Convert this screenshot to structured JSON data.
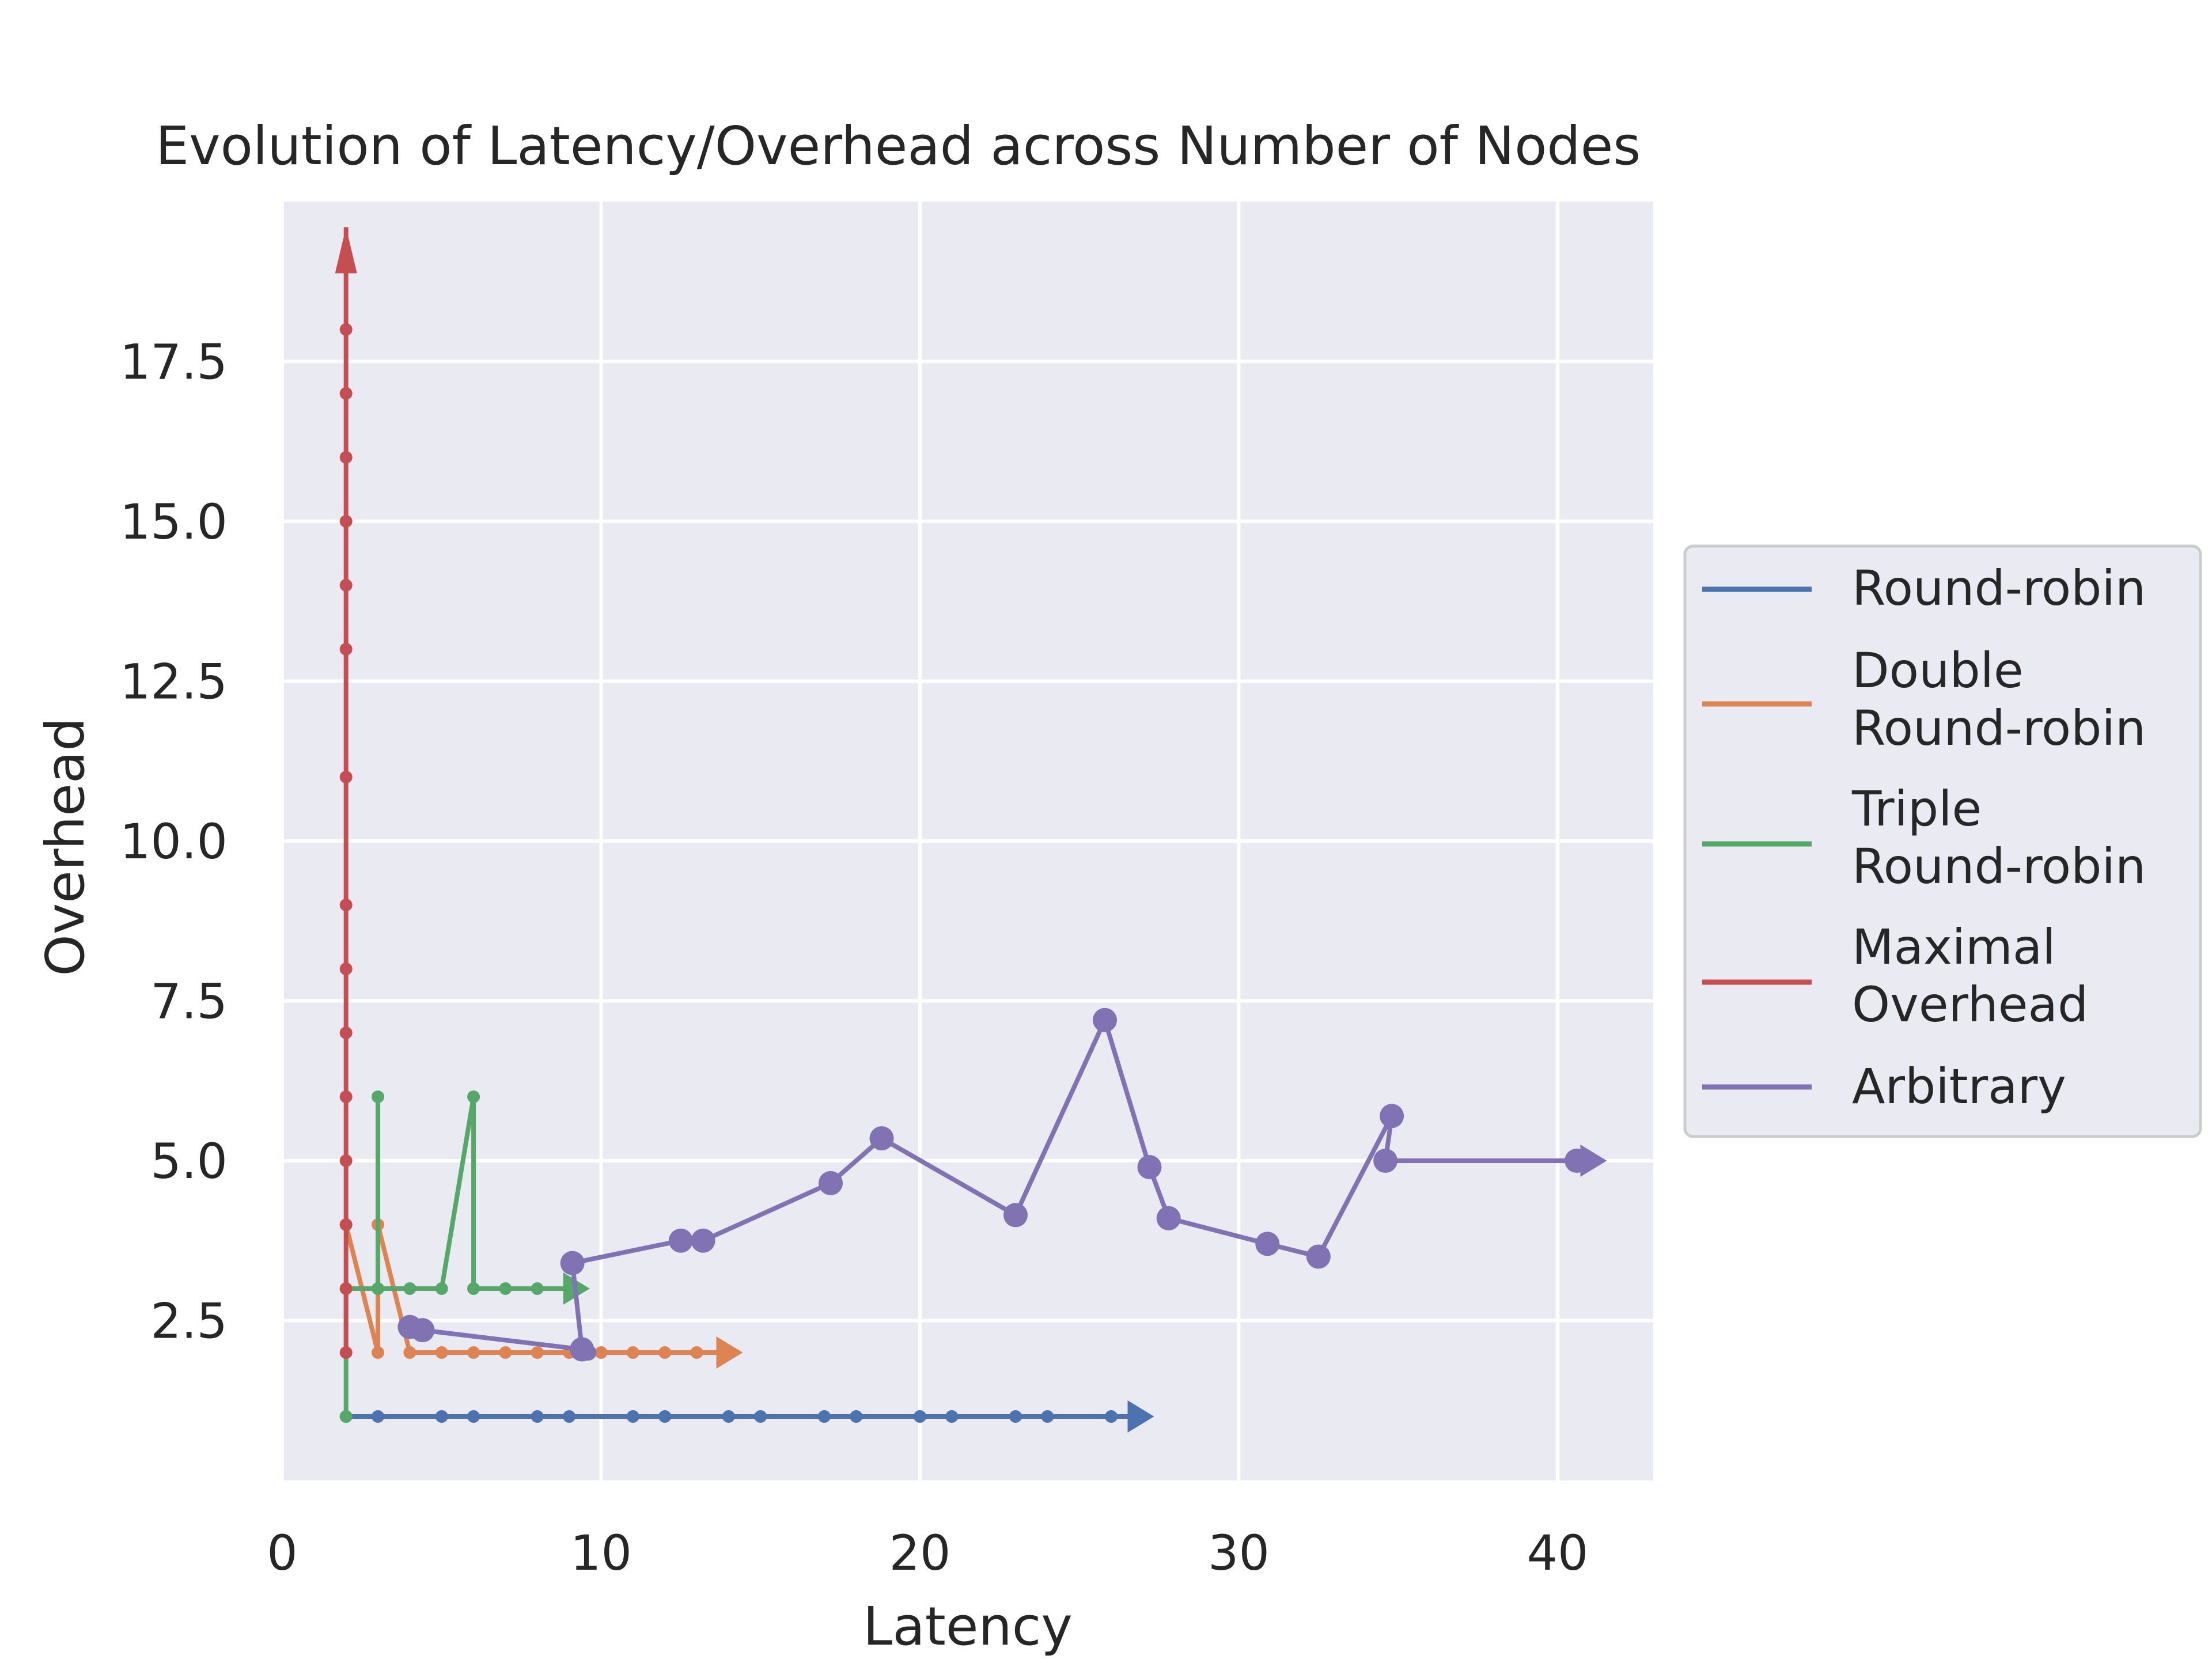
{
  "chart_data": {
    "type": "line",
    "title": "Evolution of Latency/Overhead across Number of Nodes",
    "xlabel": "Latency",
    "ylabel": "Overhead",
    "xlim": [
      0,
      43
    ],
    "ylim": [
      0,
      20
    ],
    "xticks": [
      0,
      10,
      20,
      30,
      40
    ],
    "xtick_labels": [
      "0",
      "10",
      "20",
      "30",
      "40"
    ],
    "yticks": [
      2.5,
      5.0,
      7.5,
      10.0,
      12.5,
      15.0,
      17.5
    ],
    "ytick_labels": [
      "2.5",
      "5.0",
      "7.5",
      "10.0",
      "12.5",
      "15.0",
      "17.5"
    ],
    "grid": true,
    "legend_position": "right, outside plot",
    "series": [
      {
        "name": "Round-robin",
        "legend_lines": [
          "Round-robin"
        ],
        "color": "#4c72b0",
        "marker_size": "small",
        "points": [
          [
            2,
            1
          ],
          [
            3,
            1
          ],
          [
            5,
            1
          ],
          [
            6,
            1
          ],
          [
            8,
            1
          ],
          [
            9,
            1
          ],
          [
            11,
            1
          ],
          [
            12,
            1
          ],
          [
            14,
            1
          ],
          [
            15,
            1
          ],
          [
            17,
            1
          ],
          [
            18,
            1
          ],
          [
            20,
            1
          ],
          [
            21,
            1
          ],
          [
            23,
            1
          ],
          [
            24,
            1
          ],
          [
            26,
            1
          ]
        ],
        "arrow_end": [
          27.2,
          1
        ],
        "arrow_direction": "right"
      },
      {
        "name": "Double Round-robin",
        "legend_lines": [
          "Double",
          "Round-robin"
        ],
        "color": "#dd8452",
        "marker_size": "small",
        "points": [
          [
            2,
            4
          ],
          [
            3,
            2
          ],
          [
            3,
            4
          ],
          [
            4,
            2
          ],
          [
            5,
            2
          ],
          [
            6,
            2
          ],
          [
            7,
            2
          ],
          [
            8,
            2
          ],
          [
            9,
            2
          ],
          [
            10,
            2
          ],
          [
            11,
            2
          ],
          [
            12,
            2
          ],
          [
            13,
            2
          ]
        ],
        "arrow_end": [
          14.3,
          2
        ],
        "arrow_direction": "right"
      },
      {
        "name": "Triple Round-robin",
        "legend_lines": [
          "Triple",
          "Round-robin"
        ],
        "color": "#55a868",
        "marker_size": "small",
        "points": [
          [
            2,
            1
          ],
          [
            2,
            3
          ],
          [
            3,
            3
          ],
          [
            3,
            6
          ],
          [
            3,
            3
          ],
          [
            4,
            3
          ],
          [
            5,
            3
          ],
          [
            6,
            6
          ],
          [
            6,
            3
          ],
          [
            7,
            3
          ],
          [
            8,
            3
          ],
          [
            9,
            3
          ]
        ],
        "arrow_end": [
          9.5,
          3
        ],
        "arrow_direction": "right"
      },
      {
        "name": "Maximal Overhead",
        "legend_lines": [
          "Maximal",
          " Overhead"
        ],
        "color": "#c44e52",
        "marker_size": "small",
        "points": [
          [
            2,
            2
          ],
          [
            2,
            3
          ],
          [
            2,
            4
          ],
          [
            2,
            5
          ],
          [
            2,
            6
          ],
          [
            2,
            7
          ],
          [
            2,
            8
          ],
          [
            2,
            9
          ],
          [
            2,
            11
          ],
          [
            2,
            13
          ],
          [
            2,
            14
          ],
          [
            2,
            15
          ],
          [
            2,
            16
          ],
          [
            2,
            17
          ],
          [
            2,
            18
          ]
        ],
        "arrow_end": [
          2,
          19.6
        ],
        "arrow_direction": "up"
      },
      {
        "name": "Arbitrary",
        "legend_lines": [
          "Arbitrary"
        ],
        "color": "#8172b3",
        "marker_size": "large",
        "points": [
          [
            4,
            2.4
          ],
          [
            4.4,
            2.35
          ],
          [
            9.4,
            2.05
          ],
          [
            9.1,
            3.4
          ],
          [
            12.5,
            3.75
          ],
          [
            13.2,
            3.75
          ],
          [
            17.2,
            4.65
          ],
          [
            18.8,
            5.35
          ],
          [
            23,
            4.15
          ],
          [
            25.8,
            7.2
          ],
          [
            27.2,
            4.9
          ],
          [
            27.8,
            4.1
          ],
          [
            30.9,
            3.7
          ],
          [
            32.5,
            3.5
          ],
          [
            34.8,
            5.7
          ],
          [
            34.6,
            5.0
          ],
          [
            40.6,
            5.0
          ]
        ],
        "small_points": [
          [
            4,
            2.4
          ],
          [
            9.6,
            2.0
          ],
          [
            32.5,
            3.5
          ]
        ],
        "arrow_end": [
          41.4,
          5.0
        ],
        "arrow_direction": "right"
      }
    ]
  }
}
